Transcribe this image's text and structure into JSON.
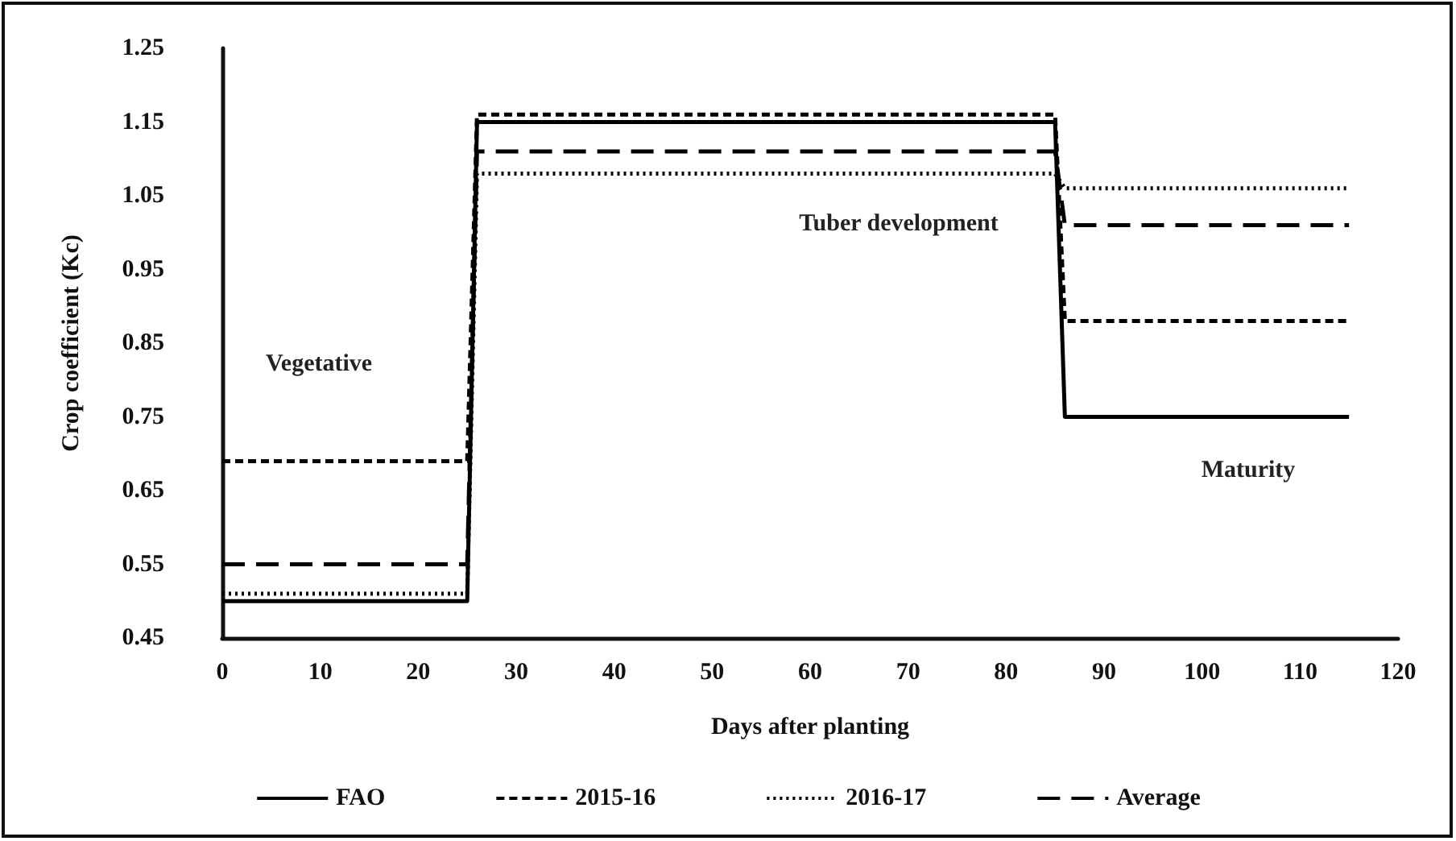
{
  "chart_data": {
    "type": "line",
    "xlabel": "Days after planting",
    "ylabel": "Crop coefficient (Kc)",
    "x": [
      0,
      25,
      26,
      85,
      86,
      115
    ],
    "series": [
      {
        "name": "FAO",
        "color": "#000000",
        "line_style": "solid",
        "values": [
          0.5,
          0.5,
          1.15,
          1.15,
          0.75,
          0.75
        ]
      },
      {
        "name": "2015-16",
        "color": "#000000",
        "line_style": "dashed",
        "values": [
          0.69,
          0.69,
          1.16,
          1.16,
          0.88,
          0.88
        ]
      },
      {
        "name": "2016-17",
        "color": "#000000",
        "line_style": "dotted",
        "values": [
          0.51,
          0.51,
          1.08,
          1.08,
          1.06,
          1.06
        ]
      },
      {
        "name": "Average",
        "color": "#000000",
        "line_style": "dashed",
        "values": [
          0.55,
          0.55,
          1.11,
          1.11,
          1.01,
          1.01
        ]
      }
    ],
    "xlim": [
      0,
      120
    ],
    "xticks": [
      0,
      10,
      20,
      30,
      40,
      50,
      60,
      70,
      80,
      90,
      100,
      110,
      120
    ],
    "ylim": [
      0.45,
      1.25
    ],
    "yticks": [
      0.45,
      0.55,
      0.65,
      0.75,
      0.85,
      0.95,
      1.05,
      1.15,
      1.25
    ],
    "annotations": [
      "Vegetative",
      "Tuber development",
      "Maturity"
    ],
    "grid": false,
    "legend": "bottom",
    "marker": "none"
  }
}
